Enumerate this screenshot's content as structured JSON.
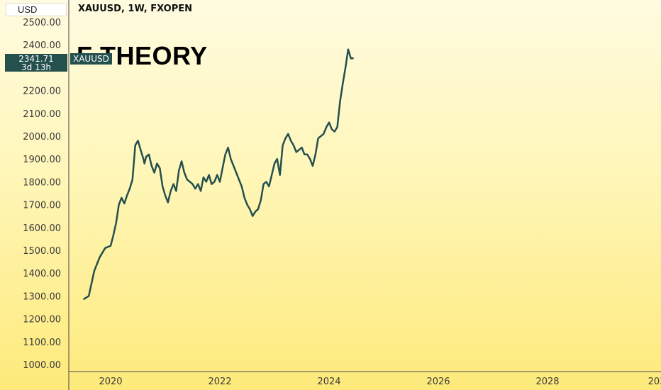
{
  "header": {
    "currency": "USD",
    "title": "XAUUSD, 1W, FXOPEN"
  },
  "watermark_text": "F THEORY",
  "price_label": {
    "price": "2341.71",
    "countdown": "3d 13h",
    "symbol": "XAUUSD"
  },
  "colors": {
    "line": "#24504d",
    "label_bg": "#24504d"
  },
  "chart_data": {
    "type": "line",
    "title": "XAUUSD, 1W, FXOPEN",
    "xlabel": "",
    "ylabel": "",
    "ylim": [
      1000,
      2500
    ],
    "xlim": [
      2019.5,
      2030.4
    ],
    "y_ticks": [
      "1000.00",
      "1100.00",
      "1200.00",
      "1300.00",
      "1400.00",
      "1500.00",
      "1600.00",
      "1700.00",
      "1800.00",
      "1900.00",
      "2000.00",
      "2100.00",
      "2200.00",
      "2300.00",
      "2400.00",
      "2500.00"
    ],
    "x_ticks": [
      "2020",
      "2022",
      "2024",
      "2026",
      "2028",
      "203"
    ],
    "grid": false,
    "series": [
      {
        "name": "XAUUSD",
        "x": [
          2019.5,
          2019.6,
          2019.7,
          2019.8,
          2019.9,
          2020.0,
          2020.05,
          2020.1,
          2020.15,
          2020.2,
          2020.25,
          2020.3,
          2020.35,
          2020.4,
          2020.45,
          2020.5,
          2020.55,
          2020.6,
          2020.62,
          2020.65,
          2020.7,
          2020.75,
          2020.8,
          2020.85,
          2020.9,
          2020.95,
          2021.0,
          2021.05,
          2021.1,
          2021.15,
          2021.2,
          2021.25,
          2021.3,
          2021.35,
          2021.4,
          2021.45,
          2021.5,
          2021.55,
          2021.6,
          2021.65,
          2021.7,
          2021.75,
          2021.8,
          2021.85,
          2021.9,
          2021.95,
          2022.0,
          2022.05,
          2022.1,
          2022.15,
          2022.2,
          2022.25,
          2022.3,
          2022.35,
          2022.4,
          2022.45,
          2022.5,
          2022.55,
          2022.6,
          2022.65,
          2022.7,
          2022.75,
          2022.8,
          2022.85,
          2022.9,
          2022.95,
          2023.0,
          2023.05,
          2023.1,
          2023.15,
          2023.2,
          2023.25,
          2023.3,
          2023.35,
          2023.4,
          2023.45,
          2023.5,
          2023.55,
          2023.6,
          2023.65,
          2023.7,
          2023.75,
          2023.8,
          2023.85,
          2023.9,
          2023.95,
          2024.0,
          2024.05,
          2024.1,
          2024.15,
          2024.2,
          2024.25,
          2024.3,
          2024.35,
          2024.4,
          2024.45
        ],
        "values": [
          1285,
          1300,
          1410,
          1470,
          1510,
          1520,
          1565,
          1620,
          1700,
          1730,
          1705,
          1740,
          1770,
          1810,
          1960,
          1980,
          1940,
          1900,
          1880,
          1910,
          1920,
          1870,
          1840,
          1880,
          1860,
          1780,
          1740,
          1710,
          1760,
          1790,
          1760,
          1850,
          1890,
          1840,
          1810,
          1800,
          1790,
          1770,
          1790,
          1760,
          1820,
          1800,
          1830,
          1790,
          1800,
          1830,
          1800,
          1860,
          1920,
          1950,
          1900,
          1870,
          1840,
          1810,
          1780,
          1730,
          1700,
          1680,
          1650,
          1670,
          1680,
          1720,
          1790,
          1800,
          1780,
          1830,
          1880,
          1900,
          1830,
          1960,
          1990,
          2010,
          1980,
          1960,
          1930,
          1940,
          1950,
          1920,
          1920,
          1900,
          1870,
          1920,
          1990,
          2000,
          2010,
          2040,
          2060,
          2030,
          2020,
          2040,
          2150,
          2230,
          2300,
          2380,
          2340,
          2341.71
        ]
      }
    ]
  }
}
